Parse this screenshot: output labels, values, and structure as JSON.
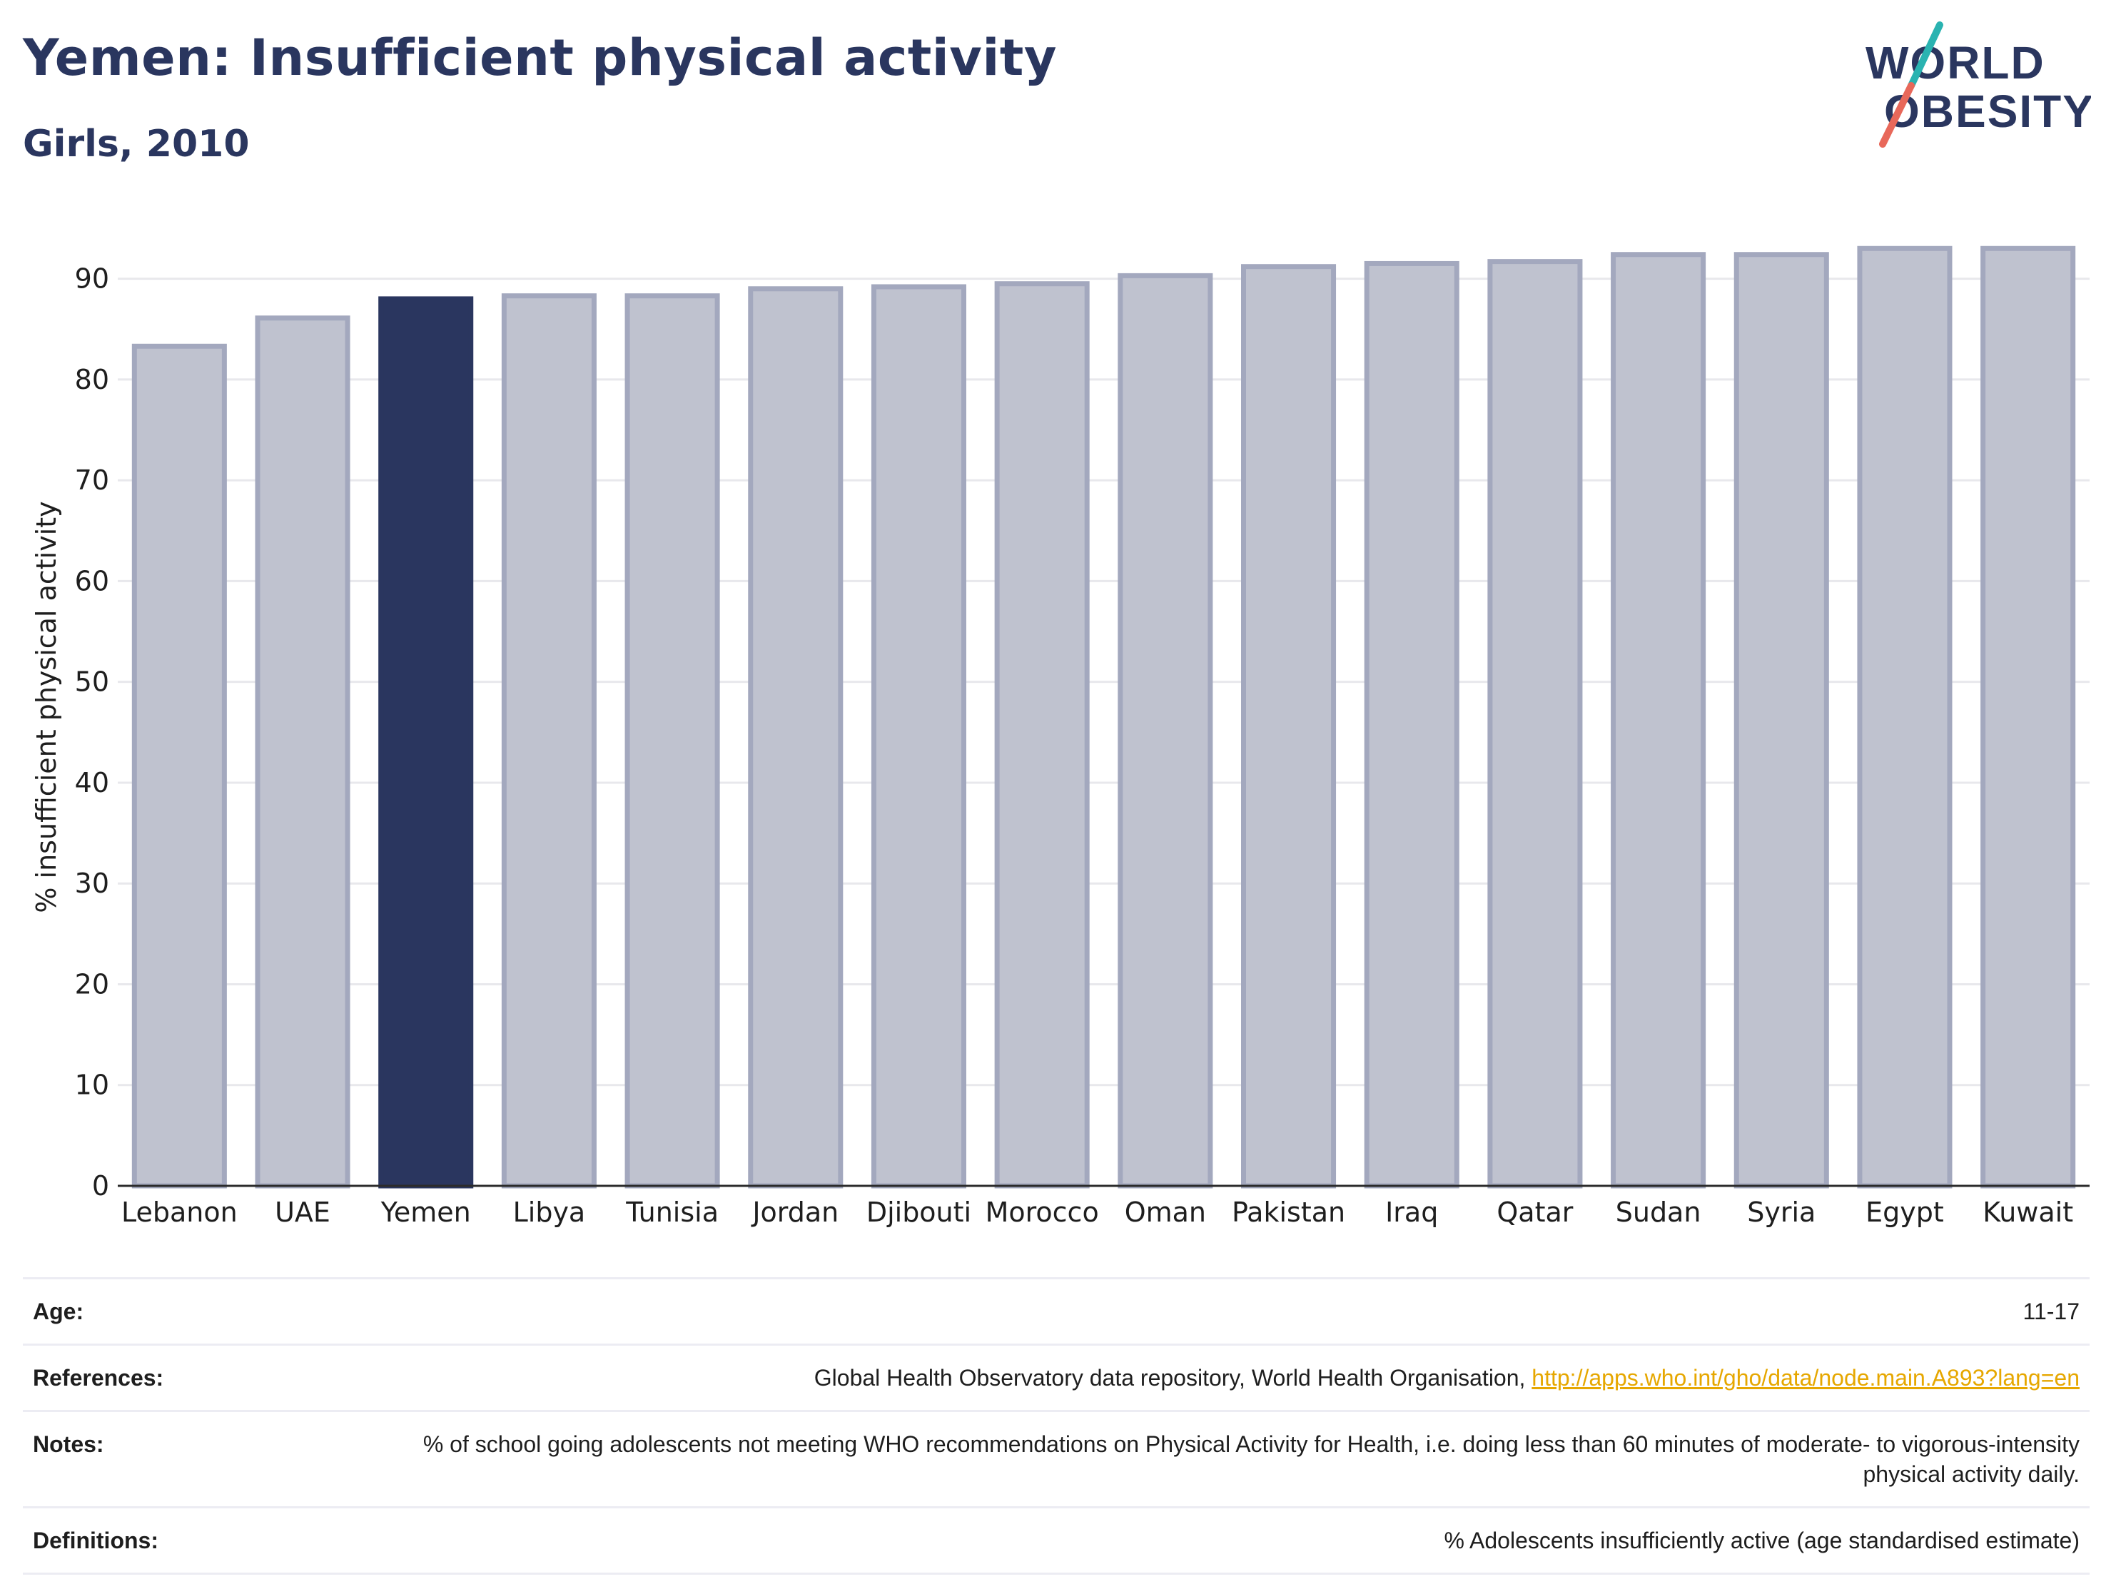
{
  "header": {
    "title": "Yemen: Insufficient physical activity",
    "subtitle": "Girls, 2010"
  },
  "logo": {
    "line1": "WORLD",
    "line2": "OBESITY",
    "colors": {
      "text": "#2a365f",
      "slash_top": "#2ab3b1",
      "slash_bottom": "#e8685a"
    }
  },
  "chart_data": {
    "type": "bar",
    "ylabel": "% insufficient physical activity",
    "ylim": [
      0,
      95
    ],
    "yticks": [
      0,
      10,
      20,
      30,
      40,
      50,
      60,
      70,
      80,
      90
    ],
    "grid": true,
    "highlight": "Yemen",
    "colors": {
      "highlight": "#2a365f",
      "bar_fill": "#bfc2cf",
      "bar_stroke": "#a3a8be"
    },
    "categories": [
      "Lebanon",
      "UAE",
      "Yemen",
      "Libya",
      "Tunisia",
      "Jordan",
      "Djibouti",
      "Morocco",
      "Oman",
      "Pakistan",
      "Iraq",
      "Qatar",
      "Sudan",
      "Syria",
      "Egypt",
      "Kuwait"
    ],
    "values": [
      83.3,
      86.1,
      88.0,
      88.3,
      88.3,
      89.0,
      89.2,
      89.5,
      90.3,
      91.2,
      91.5,
      91.7,
      92.4,
      92.4,
      93.0,
      93.0
    ]
  },
  "info": {
    "age_label": "Age:",
    "age_value": "11-17",
    "references_label": "References:",
    "references_text": "Global Health Observatory data repository, World Health Organisation, ",
    "references_link": "http://apps.who.int/gho/data/node.main.A893?lang=en",
    "notes_label": "Notes:",
    "notes_value": "% of school going adolescents not meeting WHO recommendations on Physical Activity for Health, i.e. doing less than 60 minutes of moderate- to vigorous-intensity physical activity daily.",
    "definitions_label": "Definitions:",
    "definitions_value": "% Adolescents insufficiently active (age standardised estimate)"
  }
}
